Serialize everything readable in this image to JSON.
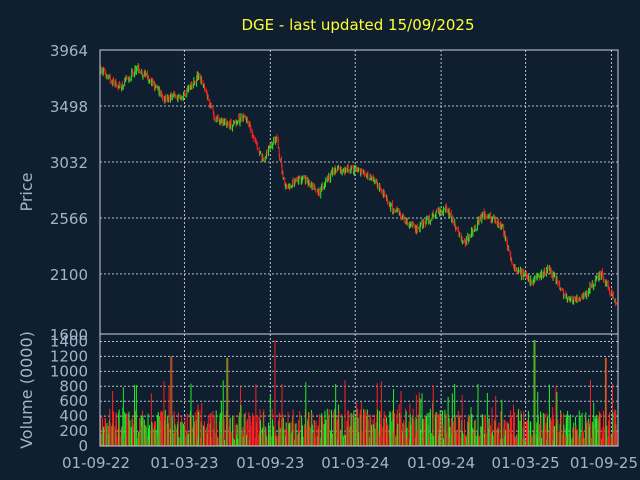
{
  "chart_data": {
    "title": "DGE - last updated 15/09/2025",
    "colors": {
      "background": "#0f1f30",
      "up": "#22ee22",
      "down": "#ff2020",
      "title": "#ffff33",
      "text": "#9fb6cc"
    },
    "x_ticks": [
      "01-09-22",
      "01-03-23",
      "01-09-23",
      "01-03-24",
      "01-09-24",
      "01-03-25",
      "01-09-25"
    ],
    "price_panel": {
      "type": "candlestick",
      "ylabel": "Price",
      "ylim": [
        1600,
        3964
      ],
      "y_ticks": [
        "3964",
        "3498",
        "3032",
        "2566",
        "2100",
        "1600"
      ],
      "trend_points": [
        [
          "2022-09-01",
          3800
        ],
        [
          "2022-10-15",
          3650
        ],
        [
          "2022-11-20",
          3820
        ],
        [
          "2022-12-20",
          3700
        ],
        [
          "2023-01-20",
          3560
        ],
        [
          "2023-03-01",
          3590
        ],
        [
          "2023-04-01",
          3760
        ],
        [
          "2023-05-05",
          3400
        ],
        [
          "2023-06-10",
          3340
        ],
        [
          "2023-07-10",
          3420
        ],
        [
          "2023-08-15",
          3050
        ],
        [
          "2023-09-15",
          3230
        ],
        [
          "2023-10-01",
          2820
        ],
        [
          "2023-11-10",
          2900
        ],
        [
          "2023-12-15",
          2780
        ],
        [
          "2024-01-15",
          2960
        ],
        [
          "2024-03-01",
          2970
        ],
        [
          "2024-04-15",
          2860
        ],
        [
          "2024-05-20",
          2640
        ],
        [
          "2024-07-10",
          2470
        ],
        [
          "2024-08-20",
          2600
        ],
        [
          "2024-09-15",
          2640
        ],
        [
          "2024-10-20",
          2340
        ],
        [
          "2024-12-01",
          2600
        ],
        [
          "2025-01-10",
          2500
        ],
        [
          "2025-02-01",
          2170
        ],
        [
          "2025-03-15",
          2030
        ],
        [
          "2025-04-20",
          2140
        ],
        [
          "2025-06-01",
          1880
        ],
        [
          "2025-07-01",
          1900
        ],
        [
          "2025-08-10",
          2110
        ],
        [
          "2025-09-15",
          1830
        ]
      ]
    },
    "volume_panel": {
      "type": "bar",
      "ylabel": "Volume (0000)",
      "ylim": [
        0,
        1500
      ],
      "y_ticks": [
        "1400",
        "1200",
        "1000",
        "800",
        "600",
        "400",
        "200",
        "0"
      ],
      "typical_volume": 300,
      "spikes": [
        [
          "2023-02-01",
          1200
        ],
        [
          "2023-09-10",
          1420
        ],
        [
          "2025-03-20",
          1420
        ],
        [
          "2025-08-20",
          1180
        ],
        [
          "2023-06-01",
          1180
        ]
      ]
    }
  }
}
